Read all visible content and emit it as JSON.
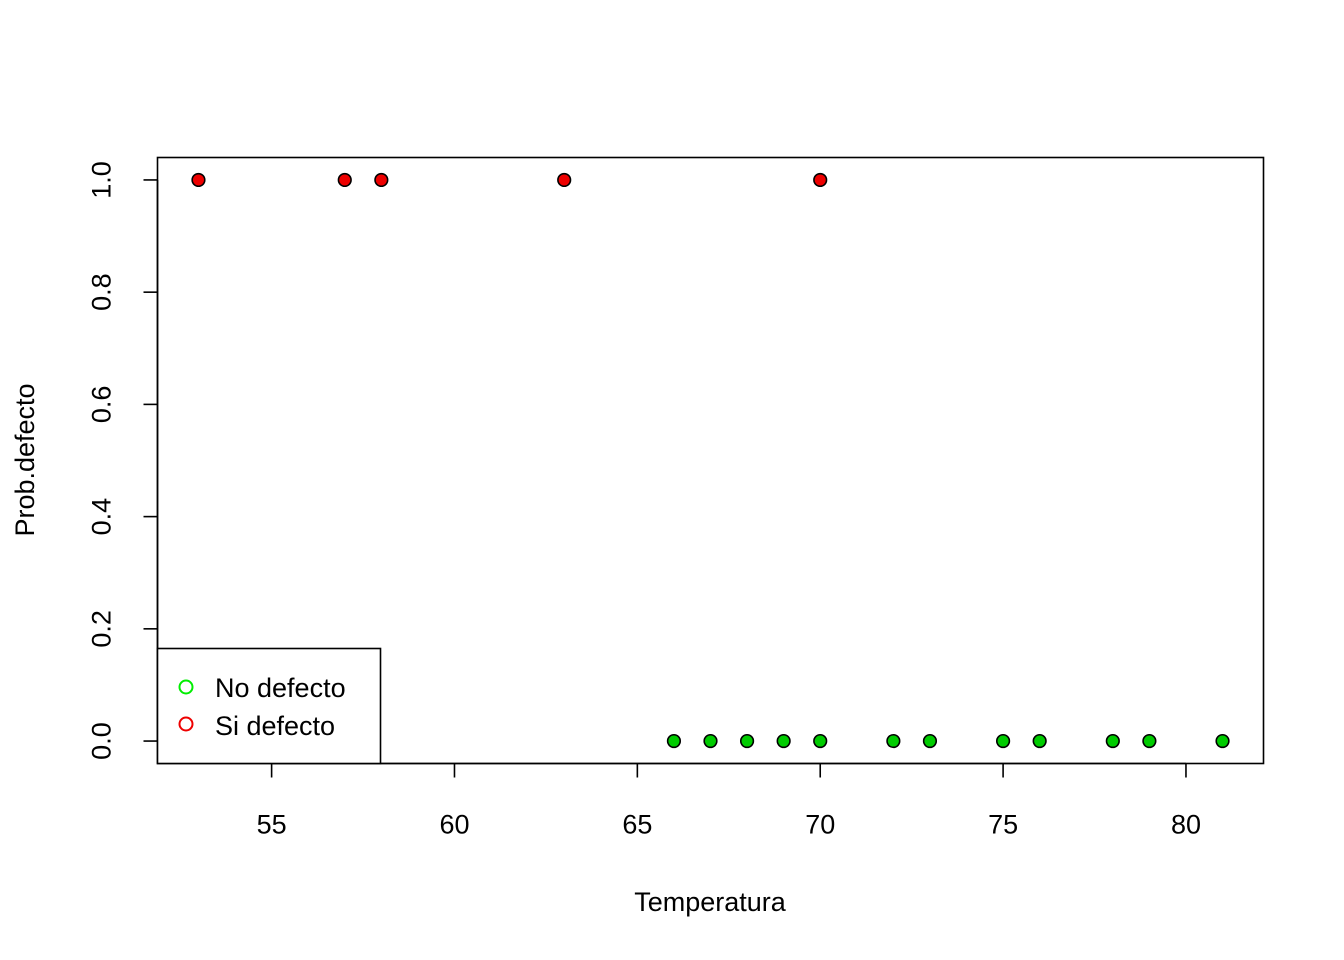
{
  "chart_data": {
    "type": "scatter",
    "xlabel": "Temperatura",
    "ylabel": "Prob.defecto",
    "xlim": [
      51.88,
      82.12
    ],
    "ylim": [
      -0.04,
      1.04
    ],
    "x_ticks": [
      55,
      60,
      65,
      70,
      75,
      80
    ],
    "y_ticks": [
      0.0,
      0.2,
      0.4,
      0.6,
      0.8,
      1.0
    ],
    "x_tick_labels": [
      "55",
      "60",
      "65",
      "70",
      "75",
      "80"
    ],
    "y_tick_labels": [
      "0.0",
      "0.2",
      "0.4",
      "0.6",
      "0.8",
      "1.0"
    ],
    "grid": false,
    "legend_position": "bottom-left",
    "series": [
      {
        "name": "No defecto",
        "color": "#00cc00",
        "x": [
          66,
          67,
          68,
          69,
          70,
          72,
          73,
          75,
          76,
          78,
          79,
          81
        ],
        "y": [
          0,
          0,
          0,
          0,
          0,
          0,
          0,
          0,
          0,
          0,
          0,
          0
        ]
      },
      {
        "name": "Si defecto",
        "color": "#ee0000",
        "x": [
          53,
          57,
          58,
          63,
          70
        ],
        "y": [
          1,
          1,
          1,
          1,
          1
        ]
      }
    ],
    "legend": {
      "entries": [
        "No defecto",
        "Si defecto"
      ],
      "colors": [
        "#00ee00",
        "#ee0000"
      ]
    }
  }
}
